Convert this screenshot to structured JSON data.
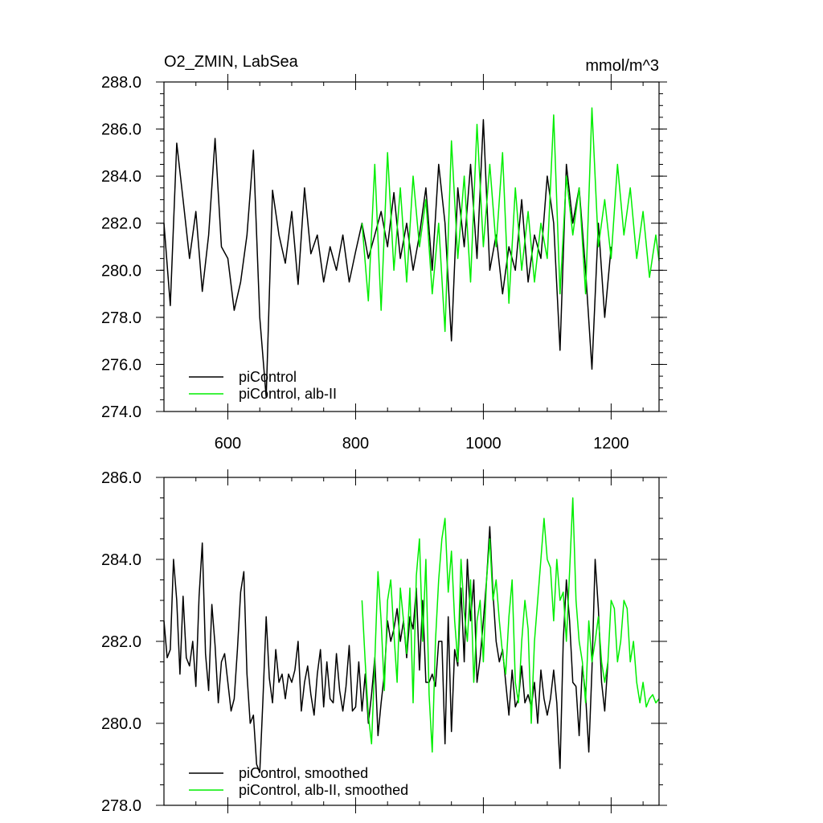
{
  "figure": {
    "title_left": "O2_ZMIN, LabSea",
    "title_right": "mmol/m^3"
  },
  "colors": {
    "control": "#000000",
    "alb": "#00ee00"
  },
  "chart_data": [
    {
      "type": "line",
      "xlim": [
        500,
        1275
      ],
      "ylim": [
        274.0,
        288.0
      ],
      "x_ticks": [
        600,
        800,
        1000,
        1200
      ],
      "x_tick_labels": [
        "600",
        "800",
        "1000",
        "1200"
      ],
      "y_ticks": [
        274.0,
        276.0,
        278.0,
        280.0,
        282.0,
        284.0,
        286.0,
        288.0
      ],
      "y_tick_labels": [
        "274.0",
        "276.0",
        "278.0",
        "280.0",
        "282.0",
        "284.0",
        "286.0",
        "288.0"
      ],
      "grid": false,
      "legend": "bottom-left",
      "series": [
        {
          "name": "piControl",
          "color": "#000000",
          "x": [
            500,
            510,
            520,
            530,
            540,
            550,
            560,
            570,
            580,
            590,
            600,
            610,
            620,
            630,
            640,
            650,
            660,
            670,
            680,
            690,
            700,
            710,
            720,
            730,
            740,
            750,
            760,
            770,
            780,
            790,
            800,
            810,
            820,
            830,
            840,
            850,
            860,
            870,
            880,
            890,
            900,
            910,
            920,
            930,
            940,
            950,
            960,
            970,
            980,
            990,
            1000,
            1010,
            1020,
            1030,
            1040,
            1050,
            1060,
            1070,
            1080,
            1090,
            1100,
            1110,
            1120,
            1130,
            1140,
            1150,
            1160,
            1170,
            1180,
            1190,
            1200
          ],
          "y": [
            282.0,
            278.5,
            285.4,
            283.0,
            280.5,
            282.5,
            279.1,
            281.5,
            285.6,
            281.0,
            280.5,
            278.3,
            279.5,
            281.5,
            285.1,
            278.0,
            274.6,
            283.4,
            281.5,
            280.3,
            282.5,
            279.4,
            283.5,
            280.7,
            281.5,
            279.5,
            281.0,
            280.0,
            281.5,
            279.5,
            280.8,
            282.0,
            280.5,
            281.5,
            282.5,
            281.0,
            283.3,
            280.5,
            282.0,
            280.0,
            281.5,
            283.5,
            280.0,
            284.5,
            282.0,
            277.0,
            283.5,
            281.0,
            284.5,
            280.5,
            286.4,
            280.0,
            281.5,
            279.0,
            281.0,
            280.0,
            283.0,
            279.5,
            281.5,
            280.5,
            284.0,
            282.0,
            276.6,
            284.5,
            282.0,
            283.5,
            280.0,
            275.8,
            282.0,
            278.0,
            281.0
          ]
        },
        {
          "name": "piControl, alb-II",
          "color": "#00ee00",
          "x": [
            810,
            820,
            830,
            840,
            850,
            860,
            870,
            880,
            890,
            900,
            910,
            920,
            930,
            940,
            950,
            960,
            970,
            980,
            990,
            1000,
            1010,
            1020,
            1030,
            1040,
            1050,
            1060,
            1070,
            1080,
            1090,
            1100,
            1110,
            1120,
            1130,
            1140,
            1150,
            1160,
            1170,
            1180,
            1190,
            1200,
            1210,
            1220,
            1230,
            1240,
            1250,
            1260,
            1270,
            1275
          ],
          "y": [
            282.0,
            278.7,
            284.5,
            278.3,
            285.0,
            280.0,
            283.5,
            279.5,
            284.0,
            281.0,
            283.0,
            279.0,
            282.0,
            277.4,
            285.5,
            280.5,
            284.0,
            279.5,
            286.2,
            281.0,
            284.5,
            281.0,
            285.0,
            278.6,
            283.5,
            280.0,
            282.5,
            279.5,
            282.0,
            280.5,
            286.6,
            279.0,
            284.0,
            281.5,
            283.5,
            279.0,
            286.9,
            281.0,
            283.0,
            280.5,
            284.5,
            281.5,
            283.5,
            280.5,
            282.5,
            279.7,
            281.5,
            280.4
          ]
        }
      ]
    },
    {
      "type": "line",
      "xlim": [
        500,
        1275
      ],
      "ylim": [
        278.0,
        286.0
      ],
      "x_ticks": [
        600,
        800,
        1000,
        1200
      ],
      "x_tick_labels": [],
      "y_ticks": [
        278.0,
        280.0,
        282.0,
        284.0,
        286.0
      ],
      "y_tick_labels": [
        "278.0",
        "280.0",
        "282.0",
        "284.0",
        "286.0"
      ],
      "grid": false,
      "legend": "bottom-left",
      "series": [
        {
          "name": "piControl, smoothed",
          "color": "#000000",
          "x": [
            500,
            505,
            510,
            515,
            520,
            525,
            530,
            535,
            540,
            545,
            550,
            555,
            560,
            565,
            570,
            575,
            580,
            585,
            590,
            595,
            600,
            605,
            610,
            615,
            620,
            625,
            630,
            635,
            640,
            645,
            650,
            655,
            660,
            665,
            670,
            675,
            680,
            685,
            690,
            695,
            700,
            705,
            710,
            715,
            720,
            725,
            730,
            735,
            740,
            745,
            750,
            755,
            760,
            765,
            770,
            775,
            780,
            785,
            790,
            795,
            800,
            805,
            810,
            815,
            820,
            825,
            830,
            835,
            840,
            845,
            850,
            855,
            860,
            865,
            870,
            875,
            880,
            885,
            890,
            895,
            900,
            905,
            910,
            915,
            920,
            925,
            930,
            935,
            940,
            945,
            950,
            955,
            960,
            965,
            970,
            975,
            980,
            985,
            990,
            995,
            1000,
            1005,
            1010,
            1015,
            1020,
            1025,
            1030,
            1035,
            1040,
            1045,
            1050,
            1055,
            1060,
            1065,
            1070,
            1075,
            1080,
            1085,
            1090,
            1095,
            1100,
            1105,
            1110,
            1115,
            1120,
            1125,
            1130,
            1135,
            1140,
            1145,
            1150,
            1155,
            1160,
            1165,
            1170,
            1175,
            1180,
            1185,
            1190,
            1195
          ],
          "y": [
            282.5,
            281.6,
            281.8,
            284.0,
            283.0,
            281.2,
            283.1,
            281.6,
            281.4,
            282.0,
            280.9,
            283.1,
            284.4,
            281.7,
            280.8,
            282.9,
            281.9,
            280.5,
            281.5,
            281.7,
            281.0,
            280.3,
            280.6,
            281.8,
            283.2,
            283.7,
            281.2,
            280.0,
            280.2,
            279.0,
            278.8,
            280.6,
            282.6,
            281.1,
            280.5,
            281.8,
            281.0,
            281.2,
            280.6,
            281.2,
            281.0,
            281.3,
            282.0,
            280.3,
            281.0,
            281.4,
            280.7,
            280.2,
            281.2,
            281.8,
            280.4,
            281.5,
            280.6,
            280.5,
            281.7,
            280.8,
            280.3,
            280.9,
            281.9,
            280.3,
            280.4,
            281.5,
            280.3,
            281.2,
            280.0,
            280.7,
            281.6,
            279.7,
            280.5,
            281.2,
            282.5,
            282.0,
            282.3,
            282.8,
            282.0,
            282.5,
            281.6,
            282.6,
            282.3,
            283.3,
            281.3,
            283.0,
            281.0,
            281.0,
            281.2,
            280.9,
            282.0,
            282.0,
            279.5,
            282.6,
            279.8,
            281.8,
            281.4,
            283.3,
            281.5,
            284.0,
            282.5,
            283.5,
            281.0,
            281.6,
            282.5,
            283.5,
            284.8,
            283.2,
            282.0,
            281.5,
            281.8,
            281.0,
            280.2,
            281.3,
            280.4,
            280.6,
            281.4,
            280.5,
            280.7,
            280.4,
            281.0,
            280.0,
            281.3,
            280.6,
            280.2,
            280.6,
            281.3,
            280.5,
            278.9,
            282.0,
            283.5,
            282.5,
            281.0,
            280.9,
            279.7,
            281.4,
            280.7,
            279.3,
            281.3,
            284.0,
            282.8,
            281.0,
            280.3,
            281.5
          ]
        },
        {
          "name": "piControl, alb-II, smoothed",
          "color": "#00ee00",
          "x": [
            810,
            815,
            820,
            825,
            830,
            835,
            840,
            845,
            850,
            855,
            860,
            865,
            870,
            875,
            880,
            885,
            890,
            895,
            900,
            905,
            910,
            915,
            920,
            925,
            930,
            935,
            940,
            945,
            950,
            955,
            960,
            965,
            970,
            975,
            980,
            985,
            990,
            995,
            1000,
            1005,
            1010,
            1015,
            1020,
            1025,
            1030,
            1035,
            1040,
            1045,
            1050,
            1055,
            1060,
            1065,
            1070,
            1075,
            1080,
            1085,
            1090,
            1095,
            1100,
            1105,
            1110,
            1115,
            1120,
            1125,
            1130,
            1135,
            1140,
            1145,
            1150,
            1155,
            1160,
            1165,
            1170,
            1175,
            1180,
            1185,
            1190,
            1195,
            1200,
            1205,
            1210,
            1215,
            1220,
            1225,
            1230,
            1235,
            1240,
            1245,
            1250,
            1255,
            1260,
            1265,
            1270,
            1275
          ],
          "y": [
            283.0,
            281.5,
            280.2,
            279.5,
            281.5,
            283.7,
            282.5,
            280.8,
            283.0,
            283.5,
            282.2,
            281.0,
            283.3,
            282.5,
            281.7,
            283.3,
            280.5,
            283.6,
            284.5,
            282.0,
            284.0,
            280.7,
            279.3,
            282.0,
            283.5,
            284.5,
            285.0,
            283.2,
            284.2,
            282.5,
            281.5,
            284.0,
            282.7,
            282.0,
            283.5,
            281.0,
            282.5,
            283.0,
            281.5,
            283.5,
            284.5,
            283.0,
            283.5,
            282.5,
            281.7,
            281.2,
            282.6,
            283.5,
            281.0,
            280.5,
            282.0,
            283.0,
            282.3,
            280.0,
            282.0,
            283.0,
            284.0,
            285.0,
            284.0,
            283.8,
            282.5,
            284.0,
            283.0,
            283.2,
            282.0,
            283.7,
            285.5,
            283.0,
            282.0,
            281.5,
            280.5,
            282.5,
            281.5,
            282.0,
            282.6,
            281.5,
            281.0,
            281.5,
            283.0,
            282.8,
            281.5,
            282.0,
            283.0,
            282.8,
            281.5,
            282.0,
            281.0,
            280.5,
            281.0,
            280.4,
            280.6,
            280.7,
            280.5,
            280.6
          ]
        }
      ]
    }
  ]
}
